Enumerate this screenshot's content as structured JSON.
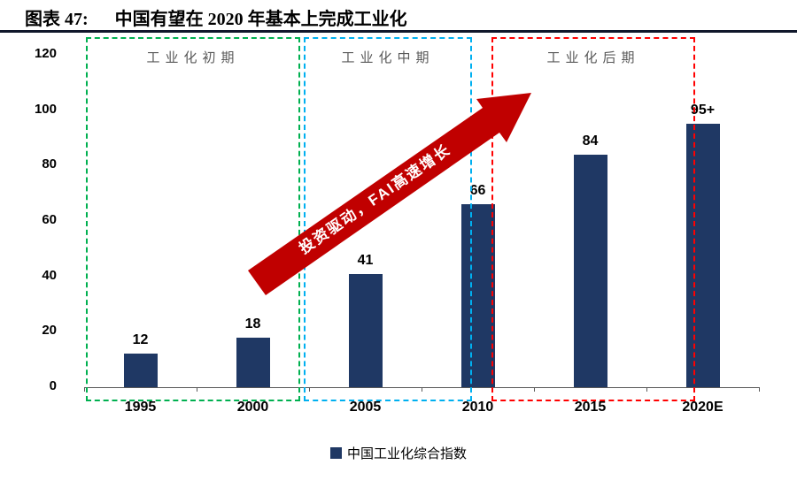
{
  "header": {
    "figure_label": "图表 47:",
    "title": "中国有望在 2020 年基本上完成工业化"
  },
  "chart_data": {
    "type": "bar",
    "title": "中国有望在 2020 年基本上完成工业化",
    "categories": [
      "1995",
      "2000",
      "2005",
      "2010",
      "2015",
      "2020E"
    ],
    "values": [
      12,
      18,
      41,
      66,
      84,
      95
    ],
    "bar_labels": [
      "12",
      "18",
      "41",
      "66",
      "84",
      "95+"
    ],
    "xlabel": "",
    "ylabel": "",
    "ylim": [
      0,
      120
    ],
    "yticks": [
      0,
      20,
      40,
      60,
      80,
      100,
      120
    ],
    "grid": false,
    "bar_color": "#1f3864",
    "legend": "中国工业化综合指数",
    "legend_position": "bottom-center",
    "zones": [
      {
        "label": "工业化初期",
        "color": "#00b050",
        "span": [
          "1995",
          "2000"
        ]
      },
      {
        "label": "工业化中期",
        "color": "#00b0f0",
        "span": [
          "2005",
          "2010"
        ]
      },
      {
        "label": "工业化后期",
        "color": "#ff0000",
        "span": [
          "2015",
          "2020E"
        ]
      }
    ],
    "arrow": {
      "label": "投资驱动，FAI高速增长",
      "color": "#c00000"
    }
  }
}
